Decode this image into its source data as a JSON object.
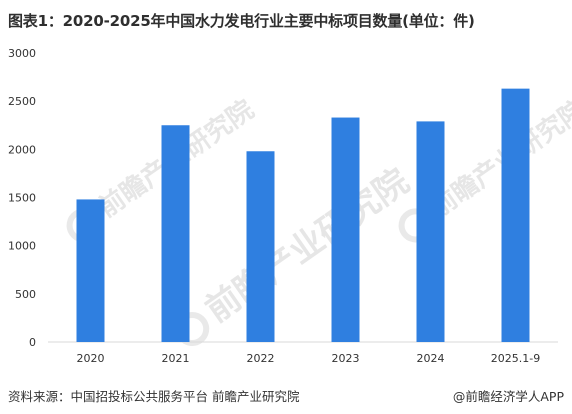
{
  "header": {
    "title": "图表1：2020-2025年中国水力发电行业主要中标项目数量(单位：件)"
  },
  "chart_data": {
    "type": "bar",
    "title": "图表1：2020-2025年中国水力发电行业主要中标项目数量(单位：件)",
    "categories": [
      "2020",
      "2021",
      "2022",
      "2023",
      "2024",
      "2025.1-9"
    ],
    "values": [
      1480,
      2250,
      1980,
      2330,
      2290,
      2630
    ],
    "ylim": [
      0,
      3000
    ],
    "yticks": [
      0,
      500,
      1000,
      1500,
      2000,
      2500,
      3000
    ],
    "xlabel": "",
    "ylabel": "",
    "grid": false,
    "legend": "none",
    "bar_color": "#2f7fe0"
  },
  "watermark": {
    "text": "前瞻产业研究院"
  },
  "footer": {
    "source": "资料来源：中国招投标公共服务平台 前瞻产业研究院",
    "credit": "@前瞻经济学人APP"
  }
}
